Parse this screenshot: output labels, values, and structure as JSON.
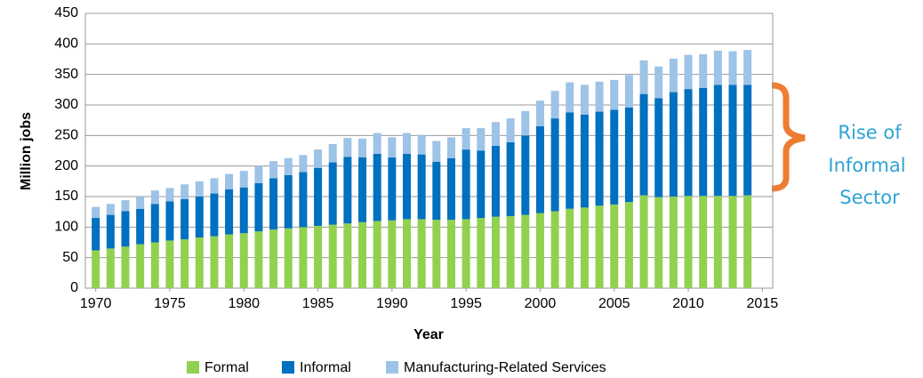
{
  "chart_data": {
    "type": "stacked_bar",
    "x_label": "Year",
    "y_label": "Million jobs",
    "annotation": [
      "Rise of",
      "Informal",
      "Sector"
    ],
    "x": [
      1970,
      1971,
      1972,
      1973,
      1974,
      1975,
      1976,
      1977,
      1978,
      1979,
      1980,
      1981,
      1982,
      1983,
      1984,
      1985,
      1986,
      1987,
      1988,
      1989,
      1990,
      1991,
      1992,
      1993,
      1994,
      1995,
      1996,
      1997,
      1998,
      1999,
      2000,
      2001,
      2002,
      2003,
      2004,
      2005,
      2006,
      2007,
      2008,
      2009,
      2010,
      2011,
      2012,
      2013,
      2014
    ],
    "series": [
      {
        "name": "Formal",
        "color": "#92d050",
        "values": [
          62,
          65,
          68,
          72,
          75,
          78,
          80,
          83,
          85,
          88,
          90,
          93,
          96,
          98,
          100,
          102,
          104,
          106,
          108,
          110,
          111,
          113,
          113,
          112,
          112,
          113,
          115,
          117,
          118,
          120,
          123,
          126,
          130,
          132,
          135,
          137,
          141,
          152,
          149,
          150,
          151,
          151,
          151,
          151,
          152
        ]
      },
      {
        "name": "Informal",
        "color": "#0070c0",
        "values": [
          53,
          55,
          58,
          58,
          63,
          64,
          66,
          67,
          70,
          74,
          75,
          79,
          84,
          87,
          90,
          95,
          102,
          109,
          106,
          110,
          103,
          107,
          106,
          95,
          101,
          114,
          110,
          116,
          121,
          130,
          142,
          152,
          158,
          152,
          154,
          155,
          155,
          166,
          162,
          171,
          175,
          177,
          182,
          182,
          181
        ]
      },
      {
        "name": "Manufacturing-Related Services",
        "color": "#9dc3e6",
        "values": [
          18,
          18,
          18,
          20,
          22,
          22,
          24,
          25,
          25,
          25,
          27,
          28,
          28,
          28,
          28,
          30,
          30,
          31,
          31,
          34,
          33,
          34,
          32,
          34,
          34,
          35,
          37,
          39,
          39,
          40,
          42,
          45,
          49,
          49,
          49,
          49,
          53,
          55,
          52,
          55,
          56,
          55,
          56,
          55,
          57
        ]
      }
    ],
    "xlim": [
      1969.3,
      2015.7
    ],
    "xticks": [
      1970,
      1975,
      1980,
      1985,
      1990,
      1995,
      2000,
      2005,
      2010,
      2015
    ],
    "ylim": [
      0,
      450
    ],
    "yticks": [
      0,
      50,
      100,
      150,
      200,
      250,
      300,
      350,
      400,
      450
    ],
    "grid": true,
    "legend": "bottom"
  }
}
